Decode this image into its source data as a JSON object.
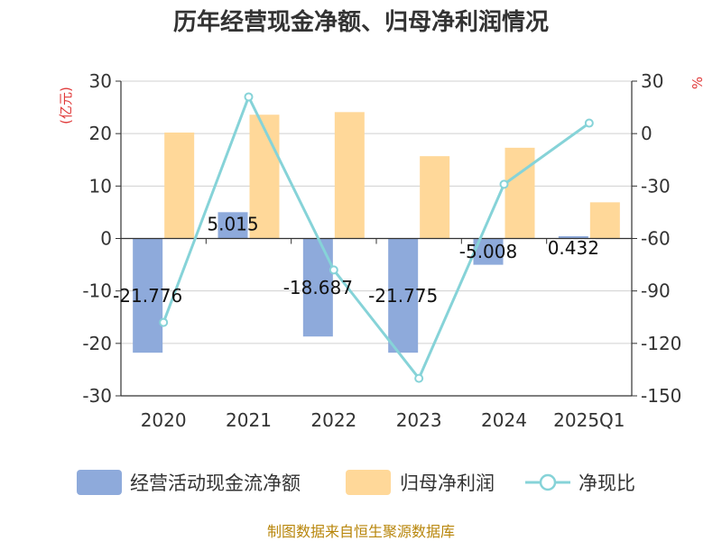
{
  "chart_data": {
    "type": "bar",
    "title": "历年经营现金净额、归母净利润情况",
    "categories": [
      "2020",
      "2021",
      "2022",
      "2023",
      "2024",
      "2025Q1"
    ],
    "series": [
      {
        "name": "经营活动现金流净额",
        "kind": "bar",
        "axis": "left",
        "color": "#8eaadb",
        "values": [
          -21.776,
          5.015,
          -18.687,
          -21.775,
          -5.008,
          0.432
        ],
        "labels": [
          "-21.776",
          "5.015",
          "-18.687",
          "-21.775",
          "-5.008",
          "0.432"
        ]
      },
      {
        "name": "归母净利润",
        "kind": "bar",
        "axis": "left",
        "color": "#ffd899",
        "values": [
          20.2,
          23.6,
          24.1,
          15.7,
          17.3,
          6.9
        ]
      },
      {
        "name": "净现比",
        "kind": "line",
        "axis": "right",
        "color": "#86d3d8",
        "values": [
          -108,
          21,
          -78,
          -140,
          -29,
          6
        ]
      }
    ],
    "y_left": {
      "unit": "(亿元)",
      "min": -30,
      "max": 30,
      "ticks": [
        "30",
        "20",
        "10",
        "0",
        "-10",
        "-20",
        "-30"
      ]
    },
    "y_right": {
      "unit": "%",
      "min": -150,
      "max": 30,
      "ticks": [
        "30",
        "0",
        "-30",
        "-60",
        "-90",
        "-120",
        "-150"
      ]
    },
    "grid": true,
    "legend": "bottom",
    "source": "制图数据来自恒生聚源数据库"
  }
}
